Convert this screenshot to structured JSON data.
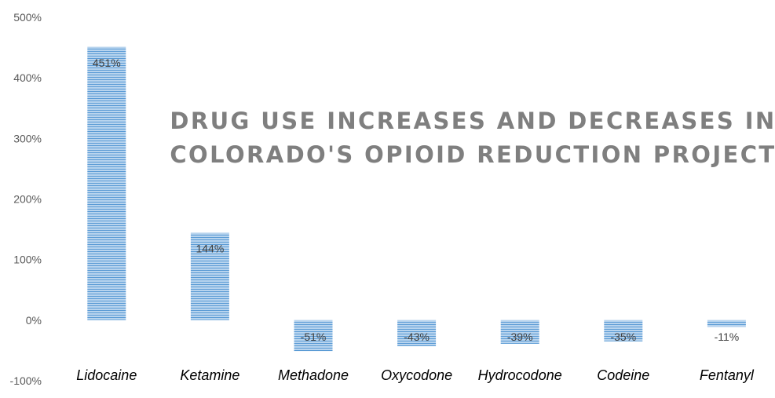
{
  "chart_data": {
    "type": "bar",
    "title": "DRUG USE INCREASES AND DECREASES IN\nCOLORADO'S OPIOID REDUCTION PROJECT",
    "categories": [
      "Lidocaine",
      "Ketamine",
      "Methadone",
      "Oxycodone",
      "Hydrocodone",
      "Codeine",
      "Fentanyl"
    ],
    "values": [
      451,
      144,
      -51,
      -43,
      -39,
      -35,
      -11
    ],
    "data_labels": [
      "451%",
      "144%",
      "-51%",
      "-43%",
      "-39%",
      "-35%",
      "-11%"
    ],
    "y_ticks": [
      500,
      400,
      300,
      200,
      100,
      0,
      -100
    ],
    "y_tick_labels": [
      "500%",
      "400%",
      "300%",
      "200%",
      "100%",
      "0%",
      "-100%"
    ],
    "ylim": [
      -100,
      500
    ],
    "grid": false,
    "legend": "none",
    "bar_color": "#9dc3e6",
    "stripe_color": "#5b9bd5",
    "label_color": "#404040",
    "tick_color": "#595959",
    "title_color": "#7f7f7f"
  }
}
